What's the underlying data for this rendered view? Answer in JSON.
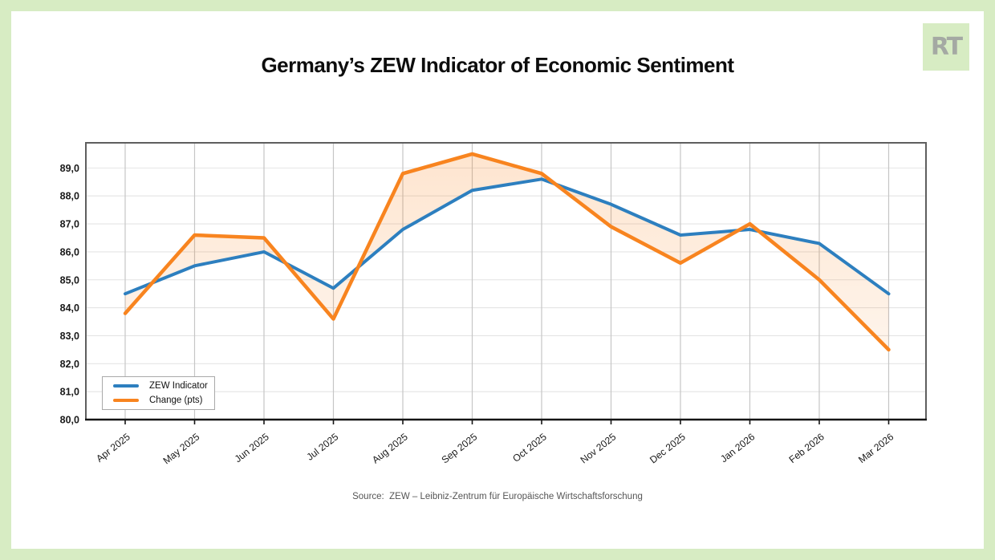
{
  "page": {
    "frame_color": "#d7ecc3",
    "card_color": "#ffffff"
  },
  "logo": {
    "text": "RT",
    "bg_color": "#d7ecc3",
    "text_color": "#a4a9a3"
  },
  "header": {
    "title": "Germany’s ZEW Indicator of Economic Sentiment"
  },
  "chart_data": {
    "type": "line",
    "title": "Germany’s ZEW Indicator of Economic Sentiment",
    "categories": [
      "Apr 2025",
      "May 2025",
      "Jun 2025",
      "Jul 2025",
      "Aug 2025",
      "Sep 2025",
      "Oct 2025",
      "Nov 2025",
      "Dec 2025",
      "Jan 2026",
      "Feb 2026",
      "Mar 2026"
    ],
    "series": [
      {
        "name": "ZEW Indicator",
        "color": "#2d7fbf",
        "values": [
          84.5,
          85.5,
          86.0,
          84.7,
          86.8,
          88.2,
          88.6,
          87.7,
          86.6,
          86.8,
          86.3,
          84.5
        ]
      },
      {
        "name": "Change (pts)",
        "color": "#f8841f",
        "values": [
          83.8,
          86.6,
          86.5,
          83.6,
          88.8,
          89.5,
          88.8,
          86.9,
          85.6,
          87.0,
          85.0,
          82.5
        ]
      }
    ],
    "fill_between": true,
    "fill_color": "#f8841f",
    "fill_alpha_top": 0.22,
    "fill_alpha_bottom": 0.04,
    "xlabel": "",
    "ylabel": "",
    "ylim": [
      80,
      89.9
    ],
    "ytick_step": 1,
    "ytick_labels": [
      "80,0",
      "81,0",
      "82,0",
      "83,0",
      "84,0",
      "85,0",
      "86,0",
      "87,0",
      "88,0",
      "89,0"
    ],
    "decimal_comma": true,
    "grid": true,
    "grid_color_vertical": "#c6c6c6",
    "grid_color_horizontal": "#e4e4e4",
    "border_color": "#5f5f5f",
    "axis_color": "#151515",
    "tick_label_color": "#1a1a1a",
    "legend_position": "lower left"
  },
  "footer": {
    "source": "Source:  ZEW – Leibniz-Zentrum für Europäische Wirtschaftsforschung"
  }
}
